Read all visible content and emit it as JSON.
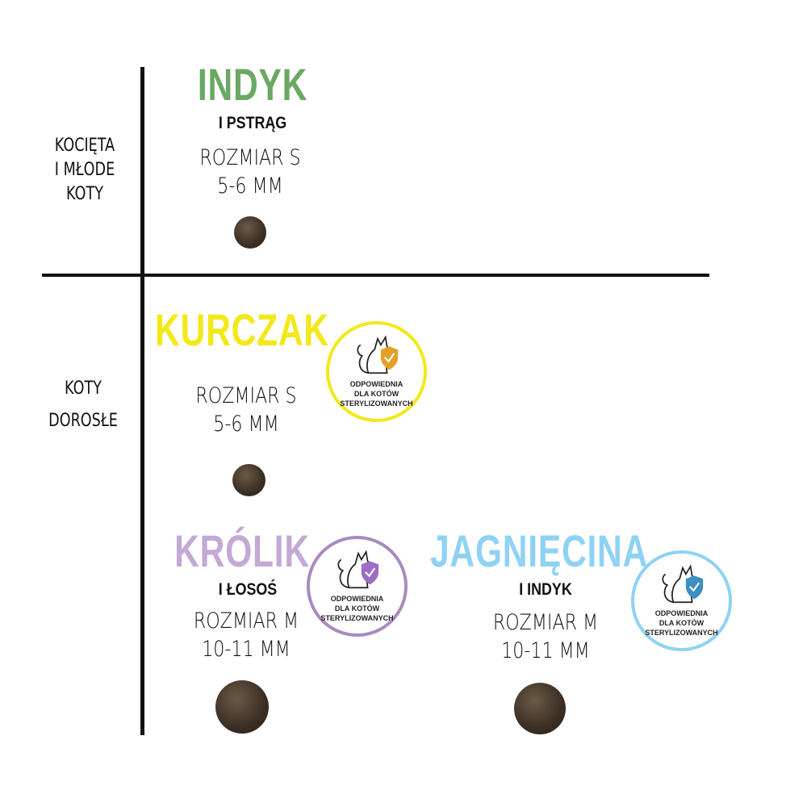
{
  "rows": {
    "kittens_label": [
      "KOCIĘTA",
      "I MŁODE",
      "KOTY"
    ],
    "adults_label": [
      "KOTY",
      "DOROSŁE"
    ]
  },
  "products": [
    {
      "name": "INDYK",
      "sub": "I PSTRĄG",
      "size": "ROZMIAR S",
      "mm": "5-6 MM",
      "color": "#6aa864",
      "badge": false
    },
    {
      "name": "KURCZAK",
      "sub": "",
      "size": "ROZMIAR S",
      "mm": "5-6 MM",
      "color": "#f3e81a",
      "badge": true,
      "badge_accent": "#e2a126"
    },
    {
      "name": "KRÓLIK",
      "sub": "I ŁOSOŚ",
      "size": "ROZMIAR M",
      "mm": "10-11 MM",
      "color": "#c3a9d5",
      "badge": true,
      "badge_accent": "#9b6ec4"
    },
    {
      "name": "JAGNIĘCINA",
      "sub": "I INDYK",
      "size": "ROZMIAR M",
      "mm": "10-11 MM",
      "color": "#8fd2f4",
      "badge": true,
      "badge_accent": "#3b8fc2"
    }
  ],
  "badge": {
    "lines": [
      "ODPOWIEDNIA",
      "DLA KOTÓW",
      "STERYLIZOWANYCH"
    ],
    "icon": "cat-shield-check-icon"
  }
}
